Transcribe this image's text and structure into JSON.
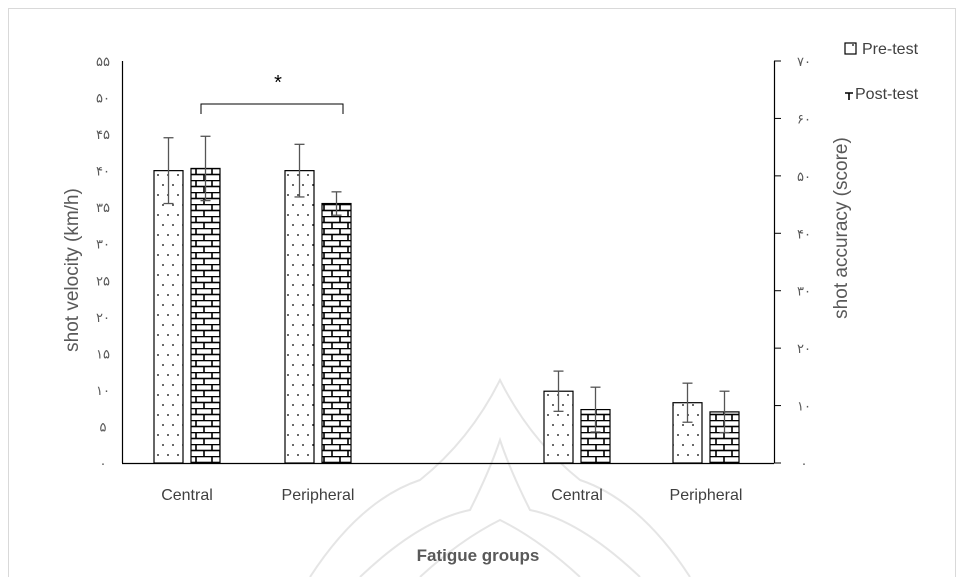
{
  "chart_data": {
    "type": "bar",
    "categories": [
      "Central",
      "Peripheral",
      "Central",
      "Peripheral"
    ],
    "series": [
      {
        "name": "Pre-test",
        "values": [
          40.0,
          40.0,
          12.5,
          10.5
        ],
        "errors": [
          4.5,
          3.6,
          3.5,
          3.4
        ]
      },
      {
        "name": "Post-test",
        "values": [
          40.3,
          35.5,
          9.3,
          8.9
        ],
        "errors": [
          4.4,
          1.6,
          3.9,
          3.6
        ]
      }
    ],
    "groups": [
      {
        "categories": [
          0,
          1
        ],
        "axis": "left"
      },
      {
        "categories": [
          2,
          3
        ],
        "axis": "right"
      }
    ],
    "xlabel": "Fatigue groups",
    "ylabel_left": "shot velocity (km/h)",
    "ylabel_right": "shot accuracy (score)",
    "ylim_left": [
      0,
      55
    ],
    "ylim_right": [
      0,
      70
    ],
    "yticks_left": [
      0,
      5,
      10,
      15,
      20,
      25,
      30,
      35,
      40,
      45,
      50,
      55
    ],
    "yticks_left_labels": [
      "۰",
      "۵",
      "۱۰",
      "۱۵",
      "۲۰",
      "۲۵",
      "۳۰",
      "۳۵",
      "۴۰",
      "۴۵",
      "۵۰",
      "۵۵"
    ],
    "yticks_right": [
      0,
      10,
      20,
      30,
      40,
      50,
      60,
      70
    ],
    "yticks_right_labels": [
      "۰",
      "۱۰",
      "۲۰",
      "۳۰",
      "۴۰",
      "۵۰",
      "۶۰",
      "۷۰"
    ],
    "annotations": [
      {
        "text": "*",
        "between": [
          0,
          1
        ],
        "type": "significance-bracket"
      }
    ],
    "legend_position": "top-right",
    "grid": false,
    "colors": {
      "fill": "#ffffff",
      "stroke": "#000000",
      "text": "#595959"
    }
  }
}
